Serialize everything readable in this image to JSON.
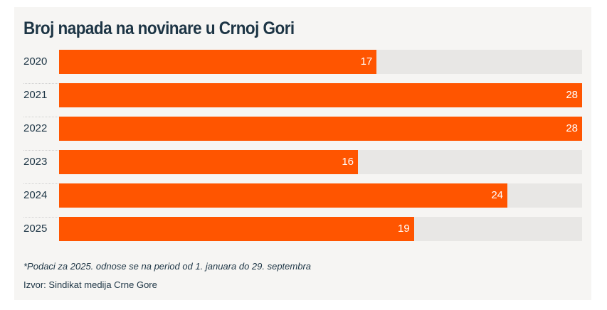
{
  "chart_data": {
    "type": "bar",
    "orientation": "horizontal",
    "title": "Broj napada na novinare u Crnoj Gori",
    "categories": [
      "2020",
      "2021",
      "2022",
      "2023",
      "2024",
      "2025"
    ],
    "values": [
      17,
      28,
      28,
      16,
      24,
      19
    ],
    "xlim": [
      0,
      28
    ],
    "grid": false,
    "colors": {
      "bar": "#ff5500",
      "track": "#e8e7e5",
      "text": "#1d3545"
    },
    "note": "*Podaci za 2025. odnose se na period od 1. januara do 29. septembra",
    "source": "Izvor: Sindikat medija Crne Gore"
  }
}
